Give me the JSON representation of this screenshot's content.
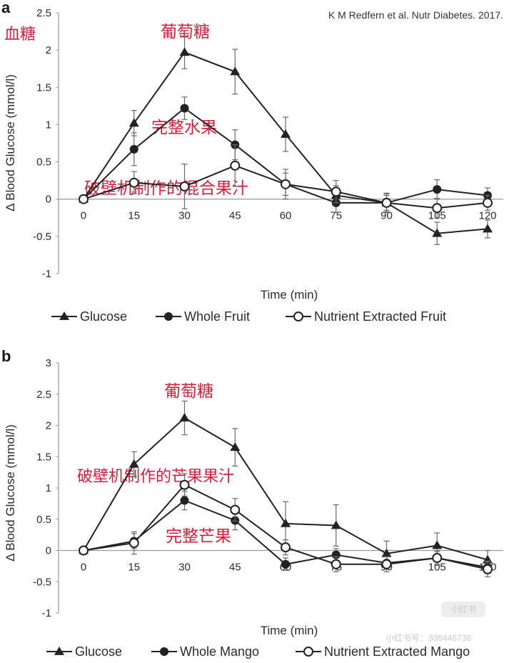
{
  "citation": "K M Redfern et al. Nutr Diabetes. 2017.",
  "watermark": {
    "brand": "小红书",
    "id_text": "小红书号：338445736"
  },
  "chart_data": [
    {
      "type": "line",
      "panel": "a",
      "xlabel": "Time (min)",
      "ylabel": "Δ Blood Glucose (mmol/l)",
      "x": [
        0,
        15,
        30,
        45,
        60,
        75,
        90,
        105,
        120
      ],
      "ylim": [
        -1,
        2.5
      ],
      "yticks": [
        -1,
        -0.5,
        0,
        0.5,
        1,
        1.5,
        2,
        2.5
      ],
      "yticklabels": [
        "-1",
        "-0.5",
        "0",
        "0.5",
        "1",
        "1.5",
        "2",
        "2.5"
      ],
      "xticklabels": [
        "0",
        "15",
        "30",
        "45",
        "60",
        "75",
        "90",
        "105",
        "120"
      ],
      "series": [
        {
          "name": "Glucose",
          "marker": "triangle",
          "values": [
            0,
            1.02,
            1.97,
            1.71,
            0.87,
            0.05,
            -0.05,
            -0.46,
            -0.4
          ],
          "err": [
            0,
            0.17,
            0.22,
            0.3,
            0.23,
            0.13,
            0.1,
            0.15,
            0.12
          ]
        },
        {
          "name": "Whole Fruit",
          "marker": "filled-circle",
          "values": [
            0,
            0.67,
            1.22,
            0.73,
            0.2,
            -0.05,
            -0.05,
            0.13,
            0.05
          ],
          "err": [
            0,
            0.22,
            0.15,
            0.2,
            0.15,
            0.13,
            0.12,
            0.13,
            0.1
          ]
        },
        {
          "name": "Nutrient Extracted Fruit",
          "marker": "open-circle",
          "values": [
            0,
            0.22,
            0.17,
            0.45,
            0.2,
            0.1,
            -0.05,
            -0.12,
            -0.05
          ],
          "err": [
            0,
            0.15,
            0.3,
            0.28,
            0.2,
            0.15,
            0.13,
            0.13,
            0.1
          ]
        }
      ],
      "annotations": [
        "血糖",
        "葡萄糖",
        "完整水果",
        "破壁机制作的混合果汁"
      ],
      "legend": "bottom"
    },
    {
      "type": "line",
      "panel": "b",
      "xlabel": "Time (min)",
      "ylabel": "Δ Blood Glucose (mmol/l)",
      "x": [
        0,
        15,
        30,
        45,
        60,
        75,
        90,
        105,
        120
      ],
      "ylim": [
        -1,
        3
      ],
      "yticks": [
        -1,
        -0.5,
        0,
        0.5,
        1,
        1.5,
        2,
        2.5,
        3
      ],
      "yticklabels": [
        "-1",
        "-0.5",
        "0",
        "0.5",
        "1",
        "1.5",
        "2",
        "2.5",
        "3"
      ],
      "xticklabels": [
        "0",
        "15",
        "30",
        "45",
        "60",
        "75",
        "90",
        "105",
        "120"
      ],
      "series": [
        {
          "name": "Glucose",
          "marker": "triangle",
          "values": [
            0,
            1.38,
            2.12,
            1.65,
            0.43,
            0.4,
            -0.05,
            0.08,
            -0.15
          ],
          "err": [
            0,
            0.2,
            0.27,
            0.3,
            0.35,
            0.33,
            0.2,
            0.2,
            0.15
          ]
        },
        {
          "name": "Whole Mango",
          "marker": "filled-circle",
          "values": [
            0,
            0.15,
            0.8,
            0.48,
            -0.22,
            -0.07,
            -0.2,
            -0.12,
            -0.27
          ],
          "err": [
            0,
            0.12,
            0.15,
            0.15,
            0.1,
            0.1,
            0.1,
            0.1,
            0.1
          ]
        },
        {
          "name": "Nutrient Extracted Mango",
          "marker": "open-circle",
          "values": [
            0,
            0.12,
            1.05,
            0.65,
            0.05,
            -0.22,
            -0.22,
            -0.12,
            -0.3
          ],
          "err": [
            0,
            0.18,
            0.18,
            0.18,
            0.12,
            0.12,
            0.12,
            0.12,
            0.12
          ]
        }
      ],
      "annotations": [
        "葡萄糖",
        "破壁机制作的芒果果汁",
        "完整芒果"
      ],
      "legend": "bottom"
    }
  ]
}
